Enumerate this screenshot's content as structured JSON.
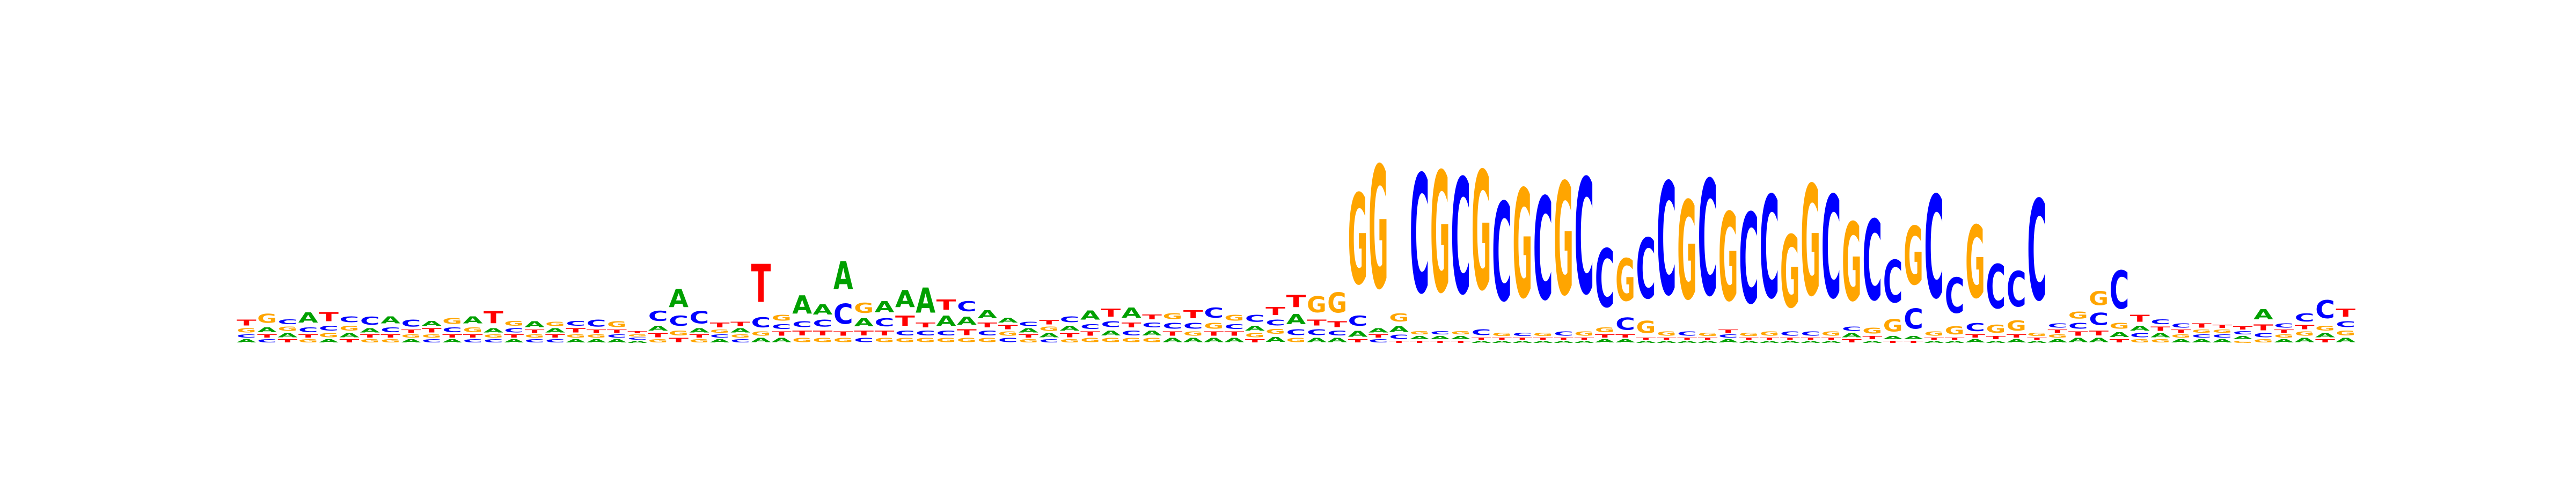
{
  "chart_data": {
    "type": "sequence-logo",
    "alphabet": [
      "A",
      "C",
      "G",
      "T"
    ],
    "colors": {
      "A": "#00a000",
      "C": "#0000ff",
      "G": "#ffa500",
      "T": "#ff0000"
    },
    "unit": "bits",
    "ylim": [
      0,
      2
    ],
    "positions": [
      {
        "A": 0.03,
        "C": 0.03,
        "G": 0.04,
        "T": 0.06
      },
      {
        "A": 0.05,
        "C": 0.03,
        "G": 0.09,
        "T": 0.03
      },
      {
        "A": 0.04,
        "C": 0.05,
        "G": 0.04,
        "T": 0.03
      },
      {
        "A": 0.1,
        "C": 0.05,
        "G": 0.03,
        "T": 0.03
      },
      {
        "A": 0.03,
        "C": 0.05,
        "G": 0.04,
        "T": 0.09
      },
      {
        "A": 0.04,
        "C": 0.06,
        "G": 0.05,
        "T": 0.03
      },
      {
        "A": 0.04,
        "C": 0.08,
        "G": 0.03,
        "T": 0.03
      },
      {
        "A": 0.07,
        "C": 0.05,
        "G": 0.03,
        "T": 0.03
      },
      {
        "A": 0.03,
        "C": 0.07,
        "G": 0.03,
        "T": 0.03
      },
      {
        "A": 0.05,
        "C": 0.03,
        "G": 0.03,
        "T": 0.04
      },
      {
        "A": 0.03,
        "C": 0.05,
        "G": 0.06,
        "T": 0.03
      },
      {
        "A": 0.07,
        "C": 0.03,
        "G": 0.05,
        "T": 0.03
      },
      {
        "A": 0.04,
        "C": 0.03,
        "G": 0.03,
        "T": 0.12
      },
      {
        "A": 0.03,
        "C": 0.04,
        "G": 0.05,
        "T": 0.03
      },
      {
        "A": 0.06,
        "C": 0.03,
        "G": 0.03,
        "T": 0.03
      },
      {
        "A": 0.04,
        "C": 0.03,
        "G": 0.04,
        "T": 0.03
      },
      {
        "A": 0.03,
        "C": 0.05,
        "G": 0.03,
        "T": 0.04
      },
      {
        "A": 0.03,
        "C": 0.07,
        "G": 0.03,
        "T": 0.03
      },
      {
        "A": 0.03,
        "C": 0.03,
        "G": 0.06,
        "T": 0.03
      },
      {
        "A": 0.02,
        "C": 0.02,
        "G": 0.02,
        "T": 0.02
      },
      {
        "A": 0.05,
        "C": 0.1,
        "G": 0.03,
        "T": 0.04
      },
      {
        "A": 0.18,
        "C": 0.1,
        "G": 0.05,
        "T": 0.04
      },
      {
        "A": 0.04,
        "C": 0.12,
        "G": 0.03,
        "T": 0.03
      },
      {
        "A": 0.03,
        "C": 0.03,
        "G": 0.03,
        "T": 0.05
      },
      {
        "A": 0.04,
        "C": 0.03,
        "G": 0.03,
        "T": 0.04
      },
      {
        "A": 0.04,
        "C": 0.1,
        "G": 0.04,
        "T": 0.38
      },
      {
        "A": 0.04,
        "C": 0.05,
        "G": 0.06,
        "T": 0.04
      },
      {
        "A": 0.18,
        "C": 0.06,
        "G": 0.04,
        "T": 0.05
      },
      {
        "A": 0.1,
        "C": 0.07,
        "G": 0.04,
        "T": 0.05
      },
      {
        "A": 0.28,
        "C": 0.2,
        "G": 0.04,
        "T": 0.04
      },
      {
        "A": 0.08,
        "C": 0.04,
        "G": 0.1,
        "T": 0.05
      },
      {
        "A": 0.11,
        "C": 0.08,
        "G": 0.04,
        "T": 0.05
      },
      {
        "A": 0.17,
        "C": 0.05,
        "G": 0.04,
        "T": 0.1
      },
      {
        "A": 0.25,
        "C": 0.05,
        "G": 0.04,
        "T": 0.05
      },
      {
        "A": 0.1,
        "C": 0.05,
        "G": 0.04,
        "T": 0.1
      },
      {
        "A": 0.08,
        "C": 0.1,
        "G": 0.04,
        "T": 0.06
      },
      {
        "A": 0.08,
        "C": 0.05,
        "G": 0.04,
        "T": 0.05
      },
      {
        "A": 0.05,
        "C": 0.04,
        "G": 0.04,
        "T": 0.04
      },
      {
        "A": 0.04,
        "C": 0.04,
        "G": 0.03,
        "T": 0.03
      },
      {
        "A": 0.04,
        "C": 0.03,
        "G": 0.04,
        "T": 0.04
      },
      {
        "A": 0.05,
        "C": 0.06,
        "G": 0.03,
        "T": 0.04
      },
      {
        "A": 0.09,
        "C": 0.05,
        "G": 0.04,
        "T": 0.04
      },
      {
        "A": 0.05,
        "C": 0.06,
        "G": 0.04,
        "T": 0.08
      },
      {
        "A": 0.1,
        "C": 0.05,
        "G": 0.04,
        "T": 0.05
      },
      {
        "A": 0.05,
        "C": 0.05,
        "G": 0.04,
        "T": 0.05
      },
      {
        "A": 0.04,
        "C": 0.06,
        "G": 0.06,
        "T": 0.04
      },
      {
        "A": 0.04,
        "C": 0.06,
        "G": 0.04,
        "T": 0.08
      },
      {
        "A": 0.04,
        "C": 0.1,
        "G": 0.06,
        "T": 0.04
      },
      {
        "A": 0.04,
        "C": 0.05,
        "G": 0.06,
        "T": 0.04
      },
      {
        "A": 0.05,
        "C": 0.07,
        "G": 0.04,
        "T": 0.03
      },
      {
        "A": 0.05,
        "C": 0.06,
        "G": 0.05,
        "T": 0.08
      },
      {
        "A": 0.1,
        "C": 0.06,
        "G": 0.04,
        "T": 0.12
      },
      {
        "A": 0.04,
        "C": 0.06,
        "G": 0.16,
        "T": 0.06
      },
      {
        "A": 0.04,
        "C": 0.05,
        "G": 0.2,
        "T": 0.06
      },
      {
        "A": 0.06,
        "C": 0.1,
        "G": 0.9,
        "T": 0.03
      },
      {
        "A": 0.04,
        "C": 0.03,
        "G": 1.22,
        "T": 0.03
      },
      {
        "A": 0.06,
        "C": 0.04,
        "G": 0.08,
        "T": 0.02
      },
      {
        "A": 0.03,
        "C": 1.18,
        "G": 0.03,
        "T": 0.02
      },
      {
        "A": 0.03,
        "C": 0.03,
        "G": 1.2,
        "T": 0.02
      },
      {
        "A": 0.03,
        "C": 1.15,
        "G": 0.03,
        "T": 0.02
      },
      {
        "A": 0.02,
        "C": 0.06,
        "G": 1.18,
        "T": 0.02
      },
      {
        "A": 0.02,
        "C": 0.98,
        "G": 0.03,
        "T": 0.02
      },
      {
        "A": 0.02,
        "C": 0.03,
        "G": 1.08,
        "T": 0.02
      },
      {
        "A": 0.02,
        "C": 1.02,
        "G": 0.03,
        "T": 0.02
      },
      {
        "A": 0.02,
        "C": 0.04,
        "G": 1.12,
        "T": 0.02
      },
      {
        "A": 0.02,
        "C": 1.15,
        "G": 0.04,
        "T": 0.02
      },
      {
        "A": 0.03,
        "C": 0.58,
        "G": 0.05,
        "T": 0.03
      },
      {
        "A": 0.03,
        "C": 0.12,
        "G": 0.42,
        "T": 0.03
      },
      {
        "A": 0.02,
        "C": 0.6,
        "G": 0.12,
        "T": 0.02
      },
      {
        "A": 0.02,
        "C": 1.12,
        "G": 0.04,
        "T": 0.02
      },
      {
        "A": 0.02,
        "C": 0.04,
        "G": 0.98,
        "T": 0.02
      },
      {
        "A": 0.02,
        "C": 1.15,
        "G": 0.03,
        "T": 0.02
      },
      {
        "A": 0.03,
        "C": 0.03,
        "G": 0.88,
        "T": 0.03
      },
      {
        "A": 0.02,
        "C": 0.9,
        "G": 0.03,
        "T": 0.02
      },
      {
        "A": 0.02,
        "C": 1.02,
        "G": 0.04,
        "T": 0.02
      },
      {
        "A": 0.02,
        "C": 0.04,
        "G": 0.72,
        "T": 0.02
      },
      {
        "A": 0.02,
        "C": 0.04,
        "G": 1.1,
        "T": 0.02
      },
      {
        "A": 0.02,
        "C": 1.02,
        "G": 0.04,
        "T": 0.02
      },
      {
        "A": 0.04,
        "C": 0.04,
        "G": 0.78,
        "T": 0.03
      },
      {
        "A": 0.02,
        "C": 0.8,
        "G": 0.06,
        "T": 0.03
      },
      {
        "A": 0.03,
        "C": 0.42,
        "G": 0.12,
        "T": 0.02
      },
      {
        "A": 0.03,
        "C": 0.2,
        "G": 0.58,
        "T": 0.02
      },
      {
        "A": 0.02,
        "C": 1.02,
        "G": 0.04,
        "T": 0.02
      },
      {
        "A": 0.02,
        "C": 0.35,
        "G": 0.08,
        "T": 0.02
      },
      {
        "A": 0.03,
        "C": 0.08,
        "G": 0.72,
        "T": 0.03
      },
      {
        "A": 0.02,
        "C": 0.44,
        "G": 0.08,
        "T": 0.03
      },
      {
        "A": 0.03,
        "C": 0.35,
        "G": 0.1,
        "T": 0.03
      },
      {
        "A": 0.02,
        "C": 1.0,
        "G": 0.03,
        "T": 0.02
      },
      {
        "A": 0.03,
        "C": 0.04,
        "G": 0.03,
        "T": 0.03
      },
      {
        "A": 0.04,
        "C": 0.06,
        "G": 0.07,
        "T": 0.04
      },
      {
        "A": 0.04,
        "C": 0.12,
        "G": 0.14,
        "T": 0.05
      },
      {
        "A": 0.05,
        "C": 0.38,
        "G": 0.06,
        "T": 0.03
      },
      {
        "A": 0.05,
        "C": 0.04,
        "G": 0.03,
        "T": 0.07
      },
      {
        "A": 0.04,
        "C": 0.05,
        "G": 0.03,
        "T": 0.04
      },
      {
        "A": 0.03,
        "C": 0.04,
        "G": 0.03,
        "T": 0.03
      },
      {
        "A": 0.03,
        "C": 0.03,
        "G": 0.03,
        "T": 0.04
      },
      {
        "A": 0.03,
        "C": 0.03,
        "G": 0.03,
        "T": 0.03
      },
      {
        "A": 0.03,
        "C": 0.03,
        "G": 0.02,
        "T": 0.03
      },
      {
        "A": 0.1,
        "C": 0.04,
        "G": 0.03,
        "T": 0.06
      },
      {
        "A": 0.03,
        "C": 0.04,
        "G": 0.03,
        "T": 0.03
      },
      {
        "A": 0.04,
        "C": 0.08,
        "G": 0.04,
        "T": 0.04
      },
      {
        "A": 0.04,
        "C": 0.18,
        "G": 0.05,
        "T": 0.03
      },
      {
        "A": 0.04,
        "C": 0.06,
        "G": 0.05,
        "T": 0.08
      }
    ]
  }
}
